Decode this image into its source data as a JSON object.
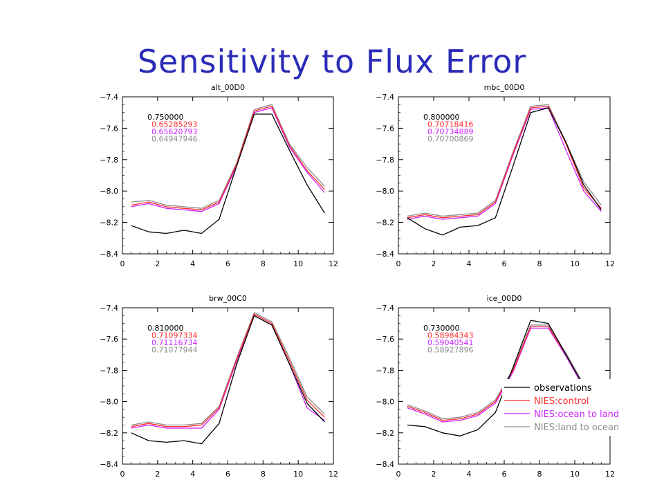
{
  "slide": {
    "title": "Sensitivity to Flux Error"
  },
  "colors": {
    "observations": "#000000",
    "control": "#ff2a2a",
    "ocean_to_land": "#cc22ff",
    "land_to_ocean": "#8c8c8c",
    "title": "#2b2bb8"
  },
  "legend": {
    "entries": [
      {
        "label": "observations",
        "series": "observations"
      },
      {
        "label": "NIES:control",
        "series": "control"
      },
      {
        "label": "NIES:ocean to land",
        "series": "ocean_to_land"
      },
      {
        "label": "NIES:land to ocean",
        "series": "land_to_ocean"
      }
    ]
  },
  "chart_data": [
    {
      "type": "line",
      "title": "alt_00D0",
      "xlim": [
        0,
        12
      ],
      "ylim": [
        -8.4,
        -7.4
      ],
      "xticks": [
        0,
        2,
        4,
        6,
        8,
        10,
        12
      ],
      "yticks": [
        -7.4,
        -7.6,
        -7.8,
        -8.0,
        -8.2,
        -8.4
      ],
      "x": [
        0.5,
        1.5,
        2.5,
        3.5,
        4.5,
        5.5,
        6.5,
        7.5,
        8.5,
        9.5,
        10.5,
        11.5
      ],
      "correlations": [
        "0.750000",
        "0.65285293",
        "0.65620793",
        "0.64947946"
      ],
      "series": [
        {
          "key": "observations",
          "values": [
            -8.22,
            -8.26,
            -8.27,
            -8.25,
            -8.27,
            -8.18,
            -7.84,
            -7.51,
            -7.51,
            -7.74,
            -7.96,
            -8.14
          ]
        },
        {
          "key": "control",
          "values": [
            -8.09,
            -8.07,
            -8.1,
            -8.11,
            -8.12,
            -8.07,
            -7.83,
            -7.49,
            -7.46,
            -7.71,
            -7.87,
            -7.99
          ]
        },
        {
          "key": "ocean_to_land",
          "values": [
            -8.1,
            -8.08,
            -8.11,
            -8.12,
            -8.13,
            -8.08,
            -7.84,
            -7.5,
            -7.47,
            -7.72,
            -7.88,
            -8.01
          ]
        },
        {
          "key": "land_to_ocean",
          "values": [
            -8.07,
            -8.06,
            -8.09,
            -8.1,
            -8.11,
            -8.06,
            -7.82,
            -7.48,
            -7.45,
            -7.7,
            -7.85,
            -7.97
          ]
        }
      ]
    },
    {
      "type": "line",
      "title": "mbc_00D0",
      "xlim": [
        0,
        12
      ],
      "ylim": [
        -8.4,
        -7.4
      ],
      "xticks": [
        0,
        2,
        4,
        6,
        8,
        10,
        12
      ],
      "yticks": [
        -7.4,
        -7.6,
        -7.8,
        -8.0,
        -8.2,
        -8.4
      ],
      "x": [
        0.5,
        1.5,
        2.5,
        3.5,
        4.5,
        5.5,
        6.5,
        7.5,
        8.5,
        9.5,
        10.5,
        11.5
      ],
      "correlations": [
        "0.800000",
        "0.70718416",
        "0.70734889",
        "0.70700869"
      ],
      "series": [
        {
          "key": "observations",
          "values": [
            -8.17,
            -8.24,
            -8.28,
            -8.23,
            -8.22,
            -8.17,
            -7.84,
            -7.5,
            -7.47,
            -7.69,
            -7.96,
            -8.12
          ]
        },
        {
          "key": "control",
          "values": [
            -8.17,
            -8.15,
            -8.17,
            -8.16,
            -8.15,
            -8.07,
            -7.76,
            -7.47,
            -7.46,
            -7.7,
            -7.98,
            -8.11
          ]
        },
        {
          "key": "ocean_to_land",
          "values": [
            -8.18,
            -8.16,
            -8.18,
            -8.17,
            -8.16,
            -8.08,
            -7.77,
            -7.48,
            -7.47,
            -7.74,
            -8.0,
            -8.13
          ]
        },
        {
          "key": "land_to_ocean",
          "values": [
            -8.16,
            -8.14,
            -8.16,
            -8.15,
            -8.14,
            -8.06,
            -7.75,
            -7.46,
            -7.45,
            -7.69,
            -7.94,
            -8.09
          ]
        }
      ]
    },
    {
      "type": "line",
      "title": "brw_00C0",
      "xlim": [
        0,
        12
      ],
      "ylim": [
        -8.4,
        -7.4
      ],
      "xticks": [
        0,
        2,
        4,
        6,
        8,
        10,
        12
      ],
      "yticks": [
        -7.4,
        -7.6,
        -7.8,
        -8.0,
        -8.2,
        -8.4
      ],
      "x": [
        0.5,
        1.5,
        2.5,
        3.5,
        4.5,
        5.5,
        6.5,
        7.5,
        8.5,
        9.5,
        10.5,
        11.5
      ],
      "correlations": [
        "0.810000",
        "0.71097334",
        "0.71116734",
        "0.71077944"
      ],
      "series": [
        {
          "key": "observations",
          "values": [
            -8.2,
            -8.25,
            -8.26,
            -8.25,
            -8.27,
            -8.14,
            -7.76,
            -7.45,
            -7.51,
            -7.76,
            -8.01,
            -8.13
          ]
        },
        {
          "key": "control",
          "values": [
            -8.16,
            -8.14,
            -8.16,
            -8.16,
            -8.15,
            -8.04,
            -7.73,
            -7.44,
            -7.5,
            -7.74,
            -7.99,
            -8.1
          ]
        },
        {
          "key": "ocean_to_land",
          "values": [
            -8.17,
            -8.15,
            -8.17,
            -8.17,
            -8.17,
            -8.05,
            -7.74,
            -7.45,
            -7.51,
            -7.76,
            -8.04,
            -8.12
          ]
        },
        {
          "key": "land_to_ocean",
          "values": [
            -8.15,
            -8.13,
            -8.15,
            -8.15,
            -8.14,
            -8.03,
            -7.72,
            -7.43,
            -7.49,
            -7.72,
            -7.97,
            -8.08
          ]
        }
      ]
    },
    {
      "type": "line",
      "title": "ice_00D0",
      "xlim": [
        0,
        12
      ],
      "ylim": [
        -8.4,
        -7.4
      ],
      "xticks": [
        0,
        2,
        4,
        6,
        8,
        10,
        12
      ],
      "yticks": [
        -7.4,
        -7.6,
        -7.8,
        -8.0,
        -8.2,
        -8.4
      ],
      "x": [
        0.5,
        1.5,
        2.5,
        3.5,
        4.5,
        5.5,
        6.5,
        7.5,
        8.5,
        9.5,
        10.5,
        11.5
      ],
      "correlations": [
        "0.730000",
        "0.58984343",
        "0.59040541",
        "0.58927896"
      ],
      "series": [
        {
          "key": "observations",
          "values": [
            -8.15,
            -8.16,
            -8.2,
            -8.22,
            -8.18,
            -8.07,
            -7.78,
            -7.48,
            -7.5,
            -7.7,
            -7.9,
            -8.0
          ]
        },
        {
          "key": "control",
          "values": [
            -8.03,
            -8.07,
            -8.12,
            -8.11,
            -8.08,
            -8.0,
            -7.8,
            -7.52,
            -7.52,
            -7.7,
            -7.9,
            -8.0
          ]
        },
        {
          "key": "ocean_to_land",
          "values": [
            -8.04,
            -8.08,
            -8.13,
            -8.12,
            -8.09,
            -8.01,
            -7.81,
            -7.53,
            -7.53,
            -7.71,
            -7.91,
            -8.01
          ]
        },
        {
          "key": "land_to_ocean",
          "values": [
            -8.02,
            -8.06,
            -8.11,
            -8.1,
            -8.07,
            -7.99,
            -7.79,
            -7.51,
            -7.51,
            -7.69,
            -7.89,
            -7.99
          ]
        }
      ]
    }
  ]
}
